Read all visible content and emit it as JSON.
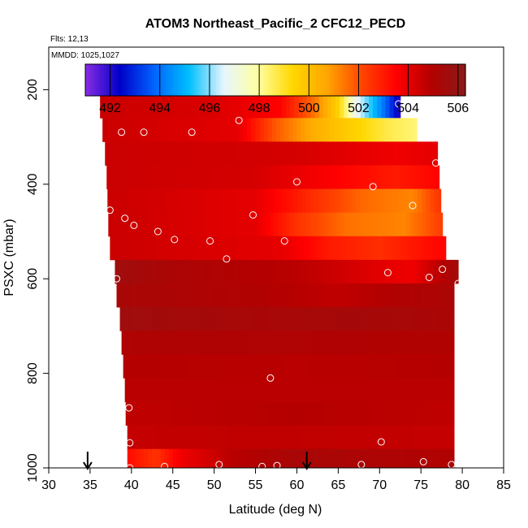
{
  "chart_data": {
    "type": "heatmap",
    "title": "ATOM3 Northeast_Pacific_2 CFC12_PECD",
    "flights_label": "Flts: 12,13",
    "dates_label": "MMDD: 1025,1027",
    "xlabel": "Latitude (deg N)",
    "ylabel": "PSXC (mbar)",
    "xlim": [
      30,
      85
    ],
    "ylim": [
      1000,
      110
    ],
    "y_reversed": true,
    "x_ticks": [
      30,
      35,
      40,
      45,
      50,
      55,
      60,
      65,
      70,
      75,
      80,
      85
    ],
    "y_ticks": [
      200,
      400,
      600,
      800,
      1000
    ],
    "colorbar": {
      "range": [
        491,
        506.3
      ],
      "ticks": [
        492,
        494,
        496,
        498,
        500,
        502,
        504,
        506
      ],
      "colors": [
        "#8A2BE2",
        "#0000C8",
        "#0064FF",
        "#00BFFF",
        "#E6F5FF",
        "#FFFFA0",
        "#FFD700",
        "#FFA500",
        "#FF4500",
        "#FF0000",
        "#B40000",
        "#8B1A1A"
      ]
    },
    "layers": [
      {
        "p_top": 170,
        "p_bot": 210,
        "lat_min": 36,
        "lat_max": 65.5,
        "stops": [
          [
            36,
            504.5
          ],
          [
            43,
            503.2
          ],
          [
            50,
            502.5
          ],
          [
            57,
            501.3
          ],
          [
            62,
            500
          ],
          [
            65.5,
            499.2
          ]
        ]
      },
      {
        "p_top": 210,
        "p_bot": 260,
        "lat_min": 36.2,
        "lat_max": 72.5,
        "stops": [
          [
            36.2,
            504.5
          ],
          [
            50,
            504.2
          ],
          [
            58,
            503.5
          ],
          [
            62,
            501.5
          ],
          [
            65,
            499.5
          ],
          [
            67,
            497
          ],
          [
            70,
            494.5
          ],
          [
            72.5,
            492
          ]
        ]
      },
      {
        "p_top": 260,
        "p_bot": 310,
        "lat_min": 36.5,
        "lat_max": 74.5,
        "stops": [
          [
            36.5,
            504.5
          ],
          [
            53,
            504
          ],
          [
            57,
            502
          ],
          [
            62,
            500.5
          ],
          [
            67,
            499.5
          ],
          [
            71,
            498.7
          ],
          [
            74.5,
            498.3
          ]
        ]
      },
      {
        "p_top": 310,
        "p_bot": 360,
        "lat_min": 36.8,
        "lat_max": 77,
        "stops": [
          [
            36.8,
            504.5
          ],
          [
            60,
            504.3
          ],
          [
            72,
            503.8
          ],
          [
            77,
            504
          ]
        ]
      },
      {
        "p_top": 360,
        "p_bot": 410,
        "lat_min": 37,
        "lat_max": 77.2,
        "stops": [
          [
            37,
            504.5
          ],
          [
            55,
            504.3
          ],
          [
            65,
            503.5
          ],
          [
            72,
            503
          ],
          [
            77.2,
            503.5
          ]
        ]
      },
      {
        "p_top": 410,
        "p_bot": 460,
        "lat_min": 37.1,
        "lat_max": 77.4,
        "stops": [
          [
            37.1,
            504.5
          ],
          [
            55,
            504
          ],
          [
            62,
            502.6
          ],
          [
            68,
            501.6
          ],
          [
            74,
            501.2
          ],
          [
            77.4,
            502.5
          ]
        ]
      },
      {
        "p_top": 460,
        "p_bot": 510,
        "lat_min": 37.2,
        "lat_max": 77.6,
        "stops": [
          [
            37.2,
            504.5
          ],
          [
            55,
            504
          ],
          [
            60,
            502.5
          ],
          [
            66,
            501.5
          ],
          [
            73,
            501.2
          ],
          [
            77.6,
            502.3
          ]
        ]
      },
      {
        "p_top": 510,
        "p_bot": 560,
        "lat_min": 37.4,
        "lat_max": 78,
        "stops": [
          [
            37.4,
            504.5
          ],
          [
            58,
            504
          ],
          [
            64,
            503
          ],
          [
            70,
            502.6
          ],
          [
            78,
            503.5
          ]
        ]
      },
      {
        "p_top": 560,
        "p_bot": 610,
        "lat_min": 38,
        "lat_max": 79.5,
        "stops": [
          [
            38,
            505.6
          ],
          [
            45,
            505.2
          ],
          [
            60,
            504.8
          ],
          [
            68,
            504.2
          ],
          [
            74,
            503.8
          ],
          [
            79.5,
            505.5
          ]
        ]
      },
      {
        "p_top": 610,
        "p_bot": 660,
        "lat_min": 38.2,
        "lat_max": 79,
        "stops": [
          [
            38.2,
            505.3
          ],
          [
            55,
            505
          ],
          [
            65,
            504.7
          ],
          [
            72,
            505
          ],
          [
            79,
            505.2
          ]
        ]
      },
      {
        "p_top": 660,
        "p_bot": 710,
        "lat_min": 38.6,
        "lat_max": 79,
        "stops": [
          [
            38.6,
            505.6
          ],
          [
            55,
            505.3
          ],
          [
            70,
            505.4
          ],
          [
            79,
            505.2
          ]
        ]
      },
      {
        "p_top": 710,
        "p_bot": 760,
        "lat_min": 38.8,
        "lat_max": 79,
        "stops": [
          [
            38.8,
            505.1
          ],
          [
            79,
            505
          ]
        ]
      },
      {
        "p_top": 760,
        "p_bot": 810,
        "lat_min": 39,
        "lat_max": 79,
        "stops": [
          [
            39,
            504.9
          ],
          [
            60,
            504.8
          ],
          [
            79,
            504.9
          ]
        ]
      },
      {
        "p_top": 810,
        "p_bot": 860,
        "lat_min": 39.2,
        "lat_max": 79,
        "stops": [
          [
            39.2,
            504.8
          ],
          [
            79,
            504.8
          ]
        ]
      },
      {
        "p_top": 860,
        "p_bot": 910,
        "lat_min": 39.3,
        "lat_max": 79,
        "stops": [
          [
            39.3,
            504.7
          ],
          [
            60,
            504.9
          ],
          [
            79,
            504.7
          ]
        ]
      },
      {
        "p_top": 910,
        "p_bot": 960,
        "lat_min": 39.5,
        "lat_max": 79,
        "stops": [
          [
            39.5,
            504.6
          ],
          [
            55,
            504.7
          ],
          [
            79,
            504.6
          ]
        ]
      },
      {
        "p_top": 960,
        "p_bot": 1000,
        "lat_min": 39.5,
        "lat_max": 79,
        "stops": [
          [
            39.5,
            503.3
          ],
          [
            43,
            502.5
          ],
          [
            46,
            503.8
          ],
          [
            52,
            504.8
          ],
          [
            60,
            505.3
          ],
          [
            79,
            505
          ]
        ]
      }
    ],
    "sample_points": [
      [
        36.2,
        200
      ],
      [
        38.8,
        290
      ],
      [
        41.5,
        290
      ],
      [
        47.3,
        290
      ],
      [
        53,
        265
      ],
      [
        37.4,
        455
      ],
      [
        39.2,
        472
      ],
      [
        40.3,
        487
      ],
      [
        43.2,
        500
      ],
      [
        45.2,
        517
      ],
      [
        49.5,
        520
      ],
      [
        54.7,
        465
      ],
      [
        58.5,
        520
      ],
      [
        51.5,
        558
      ],
      [
        38.2,
        600
      ],
      [
        60,
        395
      ],
      [
        69.2,
        405
      ],
      [
        72.3,
        230
      ],
      [
        65.5,
        188
      ],
      [
        74,
        445
      ],
      [
        76.8,
        355
      ],
      [
        77.6,
        580
      ],
      [
        76,
        597
      ],
      [
        71,
        587
      ],
      [
        79.5,
        610
      ],
      [
        39.7,
        873
      ],
      [
        39.8,
        947
      ],
      [
        39.8,
        1000
      ],
      [
        44,
        997
      ],
      [
        50.6,
        993
      ],
      [
        55.8,
        997
      ],
      [
        57.6,
        995
      ],
      [
        67.8,
        993
      ],
      [
        70.2,
        945
      ],
      [
        75.3,
        987
      ],
      [
        78.7,
        993
      ],
      [
        56.8,
        810
      ]
    ],
    "arrows_at_lat": [
      34.7,
      61.2
    ]
  }
}
